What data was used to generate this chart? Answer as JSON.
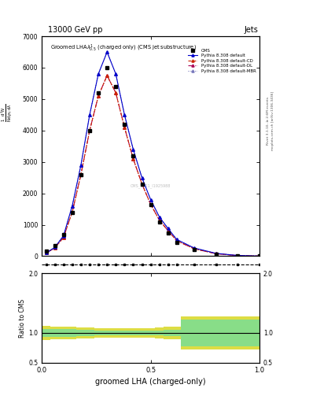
{
  "title_top_left": "13000 GeV pp",
  "title_top_right": "Jets",
  "main_title_line1": "Groomed LHA",
  "xlabel": "groomed LHA (charged-only)",
  "ratio_ylabel": "Ratio to CMS",
  "watermark": "CMS_2021_I1925988",
  "rivet_text": "Rivet 3.1.10, ≥ 2.6M events",
  "arxiv_text": "mcplots.cern.ch [arXiv:1306.3436]",
  "x_data": [
    0.02,
    0.06,
    0.1,
    0.14,
    0.18,
    0.22,
    0.26,
    0.3,
    0.34,
    0.38,
    0.42,
    0.46,
    0.5,
    0.54,
    0.58,
    0.62,
    0.7,
    0.8,
    0.9,
    1.0
  ],
  "cms_y": [
    150,
    350,
    700,
    1400,
    2600,
    4000,
    5200,
    6000,
    5400,
    4200,
    3200,
    2300,
    1650,
    1100,
    750,
    450,
    200,
    70,
    15,
    3
  ],
  "pythia_default_y": [
    100,
    280,
    650,
    1600,
    2900,
    4500,
    5800,
    6500,
    5800,
    4500,
    3400,
    2500,
    1800,
    1250,
    880,
    530,
    260,
    90,
    22,
    3
  ],
  "pythia_cd_y": [
    100,
    260,
    600,
    1400,
    2600,
    4000,
    5100,
    5750,
    5200,
    4100,
    3100,
    2300,
    1650,
    1150,
    810,
    490,
    235,
    80,
    18,
    3
  ],
  "pythia_dl_y": [
    100,
    260,
    600,
    1400,
    2600,
    4000,
    5100,
    5750,
    5200,
    4100,
    3100,
    2300,
    1650,
    1150,
    810,
    490,
    235,
    80,
    18,
    3
  ],
  "pythia_mbr_y": [
    100,
    280,
    650,
    1600,
    2900,
    4500,
    5800,
    6500,
    5800,
    4500,
    3400,
    2500,
    1800,
    1250,
    880,
    530,
    260,
    90,
    22,
    3
  ],
  "ratio_band_x_left": [
    0.0,
    0.04,
    0.08,
    0.12,
    0.16,
    0.2,
    0.24,
    0.28,
    0.32,
    0.36,
    0.4,
    0.44,
    0.48,
    0.52,
    0.56,
    0.6,
    0.64,
    0.72,
    0.8,
    0.88,
    0.96
  ],
  "ratio_band_x_right": [
    0.04,
    0.08,
    0.12,
    0.16,
    0.2,
    0.24,
    0.28,
    0.32,
    0.36,
    0.4,
    0.44,
    0.48,
    0.52,
    0.56,
    0.6,
    0.64,
    0.72,
    0.8,
    0.88,
    0.96,
    1.0
  ],
  "ratio_inner_lo": [
    0.93,
    0.93,
    0.94,
    0.94,
    0.95,
    0.95,
    0.96,
    0.96,
    0.96,
    0.96,
    0.96,
    0.96,
    0.96,
    0.96,
    0.95,
    0.95,
    0.78,
    0.78,
    0.78,
    0.78,
    0.78
  ],
  "ratio_inner_hi": [
    1.07,
    1.07,
    1.06,
    1.06,
    1.05,
    1.05,
    1.04,
    1.04,
    1.04,
    1.04,
    1.04,
    1.04,
    1.04,
    1.04,
    1.05,
    1.05,
    1.22,
    1.22,
    1.22,
    1.22,
    1.22
  ],
  "ratio_outer_lo": [
    0.88,
    0.89,
    0.9,
    0.9,
    0.91,
    0.91,
    0.92,
    0.92,
    0.92,
    0.92,
    0.92,
    0.92,
    0.92,
    0.91,
    0.9,
    0.9,
    0.72,
    0.72,
    0.72,
    0.72,
    0.72
  ],
  "ratio_outer_hi": [
    1.12,
    1.11,
    1.1,
    1.1,
    1.09,
    1.09,
    1.08,
    1.08,
    1.08,
    1.08,
    1.08,
    1.08,
    1.08,
    1.09,
    1.1,
    1.1,
    1.28,
    1.28,
    1.28,
    1.28,
    1.28
  ],
  "color_default": "#0000cc",
  "color_cd": "#cc2200",
  "color_dl": "#aa0055",
  "color_mbr": "#7777bb",
  "color_green": "#88dd88",
  "color_yellow": "#dddd44",
  "ylim_main": [
    0,
    7000
  ],
  "yticks_main": [
    0,
    1000,
    2000,
    3000,
    4000,
    5000,
    6000,
    7000
  ],
  "ylim_ratio": [
    0.5,
    2.0
  ],
  "xlim": [
    0,
    1
  ],
  "dashed_line_y": 2.0
}
